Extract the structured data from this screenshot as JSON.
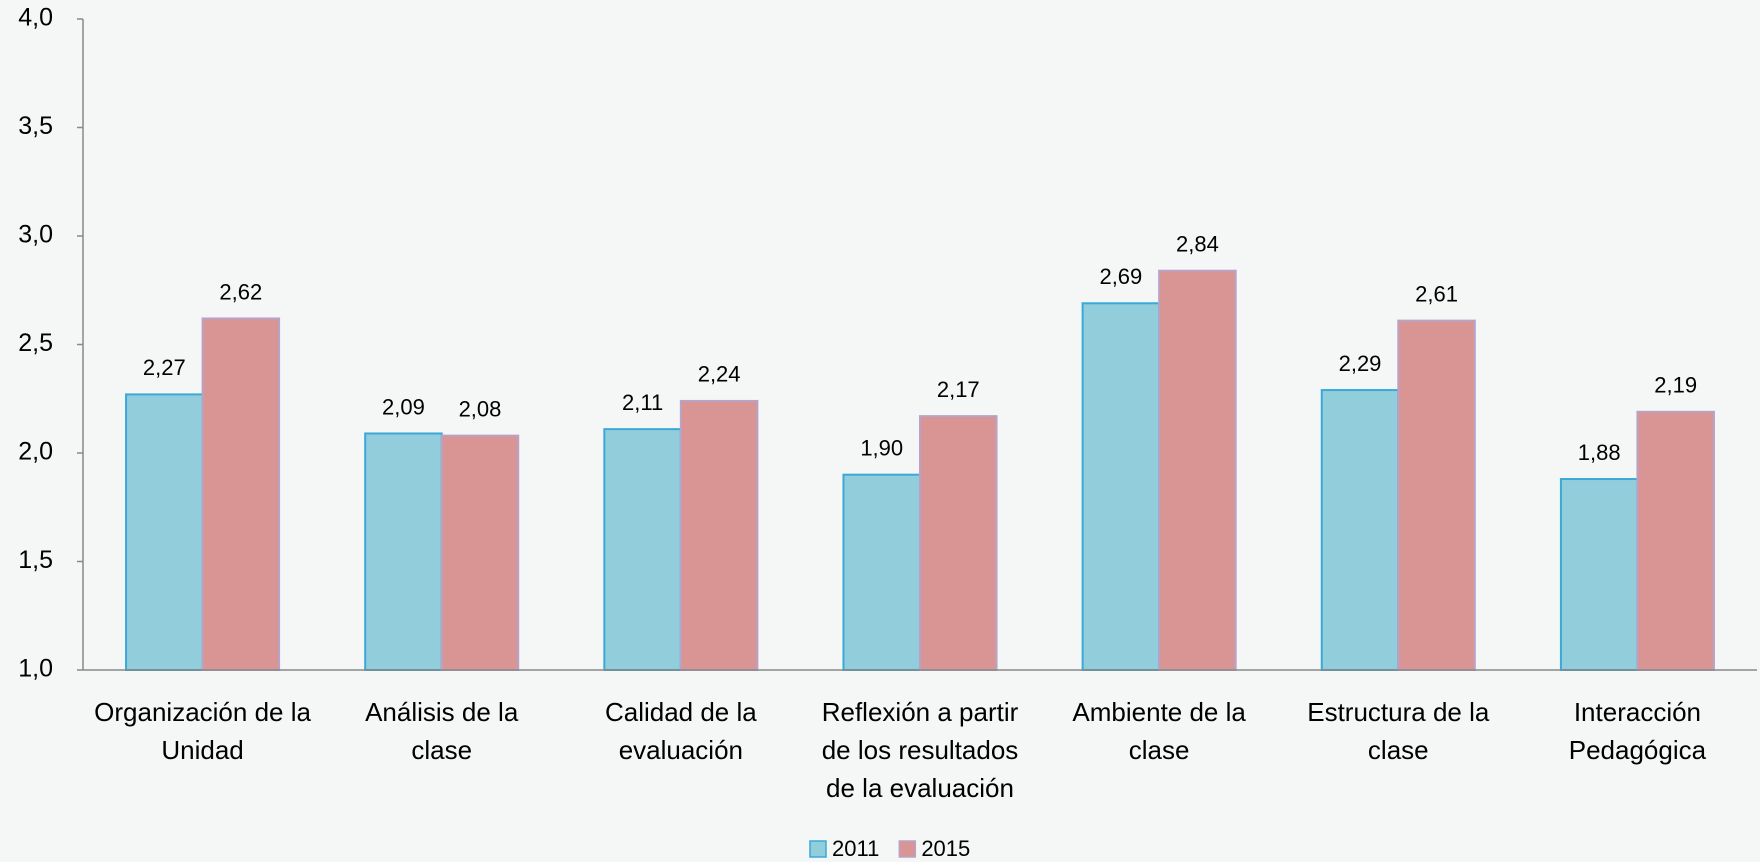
{
  "chart_data": {
    "type": "bar",
    "categories": [
      "Organización de la\nUnidad",
      "Análisis de la\nclase",
      "Calidad de la\nevaluación",
      "Reflexión a partir\nde los resultados\nde la evaluación",
      "Ambiente de la\nclase",
      "Estructura de la\nclase",
      "Interacción\nPedagógica"
    ],
    "series": [
      {
        "name": "2011",
        "color": "#92cddc",
        "values": [
          2.27,
          2.09,
          2.11,
          1.9,
          2.69,
          2.29,
          1.88
        ],
        "value_labels": [
          "2,27",
          "2,09",
          "2,11",
          "1,90",
          "2,69",
          "2,29",
          "1,88"
        ]
      },
      {
        "name": "2015",
        "color": "#d99594",
        "values": [
          2.62,
          2.08,
          2.24,
          2.17,
          2.84,
          2.61,
          2.19
        ],
        "value_labels": [
          "2,62",
          "2,08",
          "2,24",
          "2,17",
          "2,84",
          "2,61",
          "2,19"
        ]
      }
    ],
    "ylim": [
      1,
      4
    ],
    "yticks": [
      {
        "value": 1,
        "label": "1,0"
      },
      {
        "value": 1.5,
        "label": "1,5"
      },
      {
        "value": 2,
        "label": "2,0"
      },
      {
        "value": 2.5,
        "label": "2,5"
      },
      {
        "value": 3,
        "label": "3,0"
      },
      {
        "value": 3.5,
        "label": "3,5"
      },
      {
        "value": 4,
        "label": "4,0"
      }
    ],
    "grid": false,
    "legend": "bottom"
  }
}
